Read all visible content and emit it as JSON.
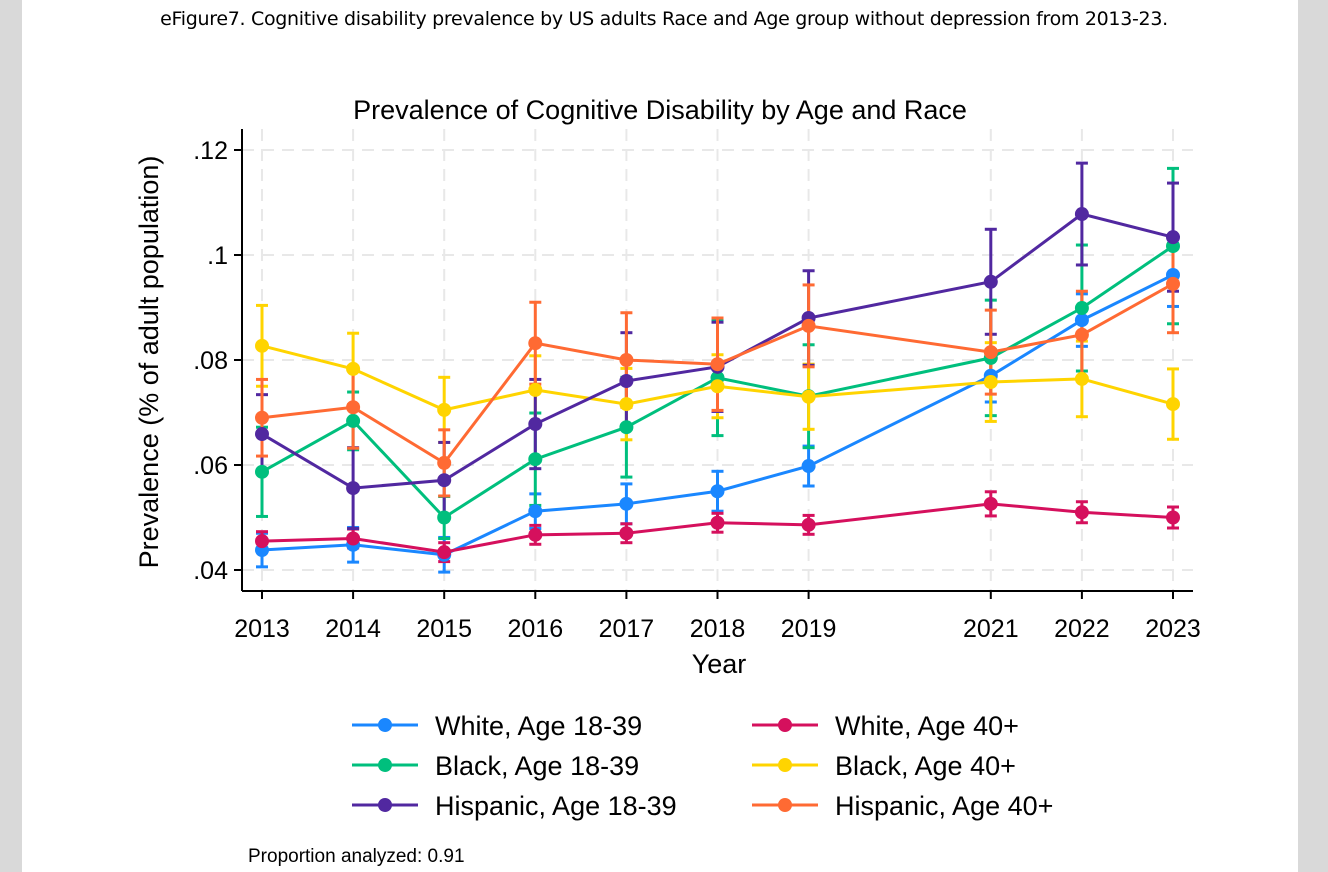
{
  "caption": "eFigure7. Cognitive disability prevalence by US adults Race and Age group without depression from 2013-23.",
  "note": "Proportion analyzed: 0.91",
  "chart_data": {
    "type": "line",
    "title": "Prevalence of Cognitive Disability by Age and Race",
    "xlabel": "Year",
    "ylabel": "Prevalence (% of adult population)",
    "x": [
      2013,
      2014,
      2015,
      2016,
      2017,
      2018,
      2019,
      2021,
      2022,
      2023
    ],
    "x_tick_labels": [
      "2013",
      "2014",
      "2015",
      "2016",
      "2017",
      "2018",
      "2019",
      "2021",
      "2022",
      "2023"
    ],
    "ylim": [
      0.036,
      0.124
    ],
    "y_ticks": [
      0.04,
      0.06,
      0.08,
      0.1,
      0.12
    ],
    "y_tick_labels": [
      ".04",
      ".06",
      ".08",
      ".1",
      ".12"
    ],
    "grid": true,
    "error_bars": "95% CI",
    "legend_position": "bottom",
    "series": [
      {
        "name": "White, Age 18-39",
        "color": "#1a87ff",
        "values": [
          0.0438,
          0.0448,
          0.0429,
          0.0512,
          0.0526,
          0.055,
          0.0598,
          0.077,
          0.0876,
          0.0962
        ],
        "ci_half": [
          0.0032,
          0.0033,
          0.0033,
          0.0033,
          0.0038,
          0.0038,
          0.0038,
          0.005,
          0.005,
          0.006
        ]
      },
      {
        "name": "White, Age 40+",
        "color": "#d5105d",
        "values": [
          0.0455,
          0.046,
          0.0434,
          0.0467,
          0.047,
          0.049,
          0.0486,
          0.0526,
          0.051,
          0.05
        ],
        "ci_half": [
          0.0018,
          0.0018,
          0.0018,
          0.0018,
          0.0018,
          0.0018,
          0.0018,
          0.0023,
          0.002,
          0.002
        ]
      },
      {
        "name": "Black, Age 18-39",
        "color": "#00bf7d",
        "values": [
          0.0587,
          0.0684,
          0.05,
          0.0611,
          0.0672,
          0.0766,
          0.0731,
          0.0804,
          0.0899,
          0.1017
        ],
        "ci_half": [
          0.0085,
          0.0055,
          0.004,
          0.0088,
          0.0095,
          0.011,
          0.0098,
          0.011,
          0.012,
          0.0148
        ]
      },
      {
        "name": "Black, Age 40+",
        "color": "#ffd400",
        "values": [
          0.0827,
          0.0783,
          0.0705,
          0.0743,
          0.0716,
          0.075,
          0.073,
          0.0758,
          0.0764,
          0.0716
        ],
        "ci_half": [
          0.0077,
          0.0068,
          0.0062,
          0.0065,
          0.0068,
          0.006,
          0.0062,
          0.0075,
          0.0072,
          0.0067
        ]
      },
      {
        "name": "Hispanic, Age 18-39",
        "color": "#5128a0",
        "values": [
          0.0659,
          0.0556,
          0.0571,
          0.0678,
          0.076,
          0.0787,
          0.088,
          0.0949,
          0.1078,
          0.1034
        ],
        "ci_half": [
          0.0075,
          0.0077,
          0.0072,
          0.0085,
          0.0092,
          0.0085,
          0.009,
          0.01,
          0.0097,
          0.0103
        ]
      },
      {
        "name": "Hispanic, Age 40+",
        "color": "#ff6a33",
        "values": [
          0.069,
          0.071,
          0.0604,
          0.0832,
          0.08,
          0.0792,
          0.0865,
          0.0815,
          0.0848,
          0.0945
        ],
        "ci_half": [
          0.0073,
          0.0078,
          0.0063,
          0.0078,
          0.009,
          0.0088,
          0.0078,
          0.008,
          0.0083,
          0.0093
        ]
      }
    ],
    "legend_order": [
      0,
      1,
      2,
      3,
      4,
      5
    ]
  }
}
